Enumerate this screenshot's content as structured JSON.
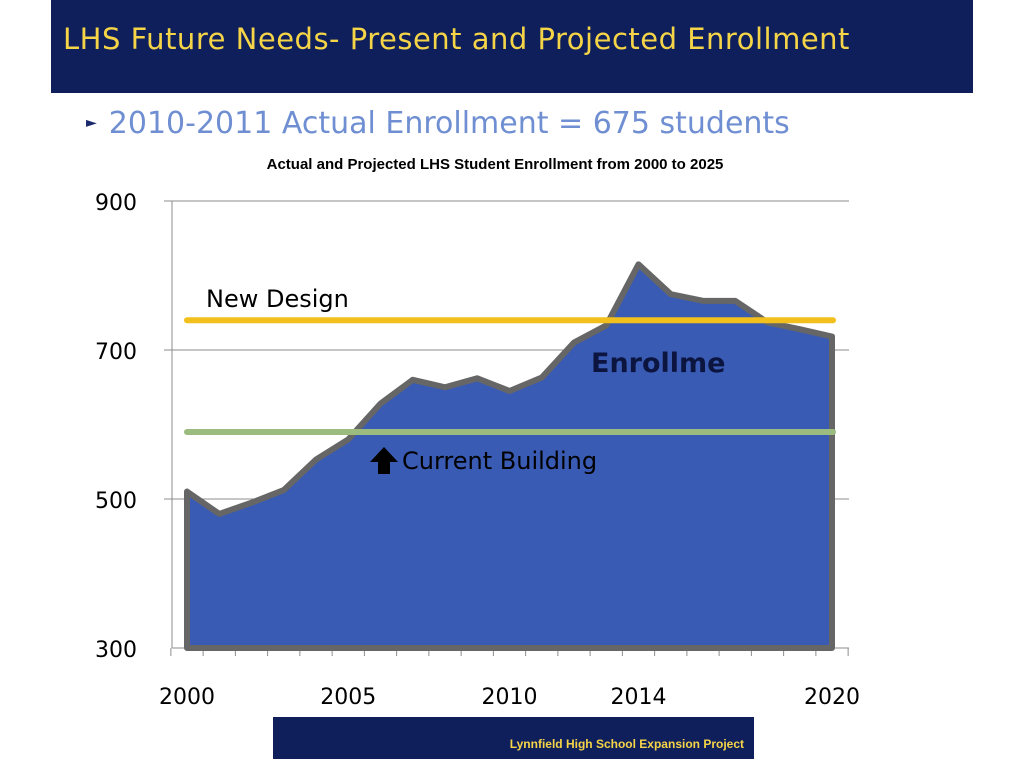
{
  "slide": {
    "title": "LHS Future Needs- Present and Projected Enrollment",
    "bullet": "2010-2011 Actual Enrollment = 675 students",
    "footer": "Lynnfield High School Expansion  Project"
  },
  "colors": {
    "title_bar": "#0f1f5c",
    "title_text": "#f5d547",
    "bullet_text": "#6f8fd2",
    "area_fill": "#3a5bb3",
    "area_outline": "#666666",
    "new_design_line": "#f2c01c",
    "current_building_line": "#9bbb7f"
  },
  "chart_data": {
    "type": "area",
    "title": "Actual and Projected LHS Student Enrollment  from 2000 to 2025",
    "x_tick_labels": [
      "2000",
      "2005",
      "2010",
      "2014",
      "2020"
    ],
    "y_tick_labels": [
      "900",
      "700",
      "500",
      "300"
    ],
    "ylim": [
      300,
      900
    ],
    "xlim": [
      2000,
      2020
    ],
    "grid": true,
    "series": [
      {
        "name": "Enrollme",
        "x": [
          2000,
          2001,
          2002,
          2003,
          2004,
          2005,
          2006,
          2007,
          2008,
          2009,
          2010,
          2011,
          2012,
          2013,
          2014,
          2015,
          2016,
          2017,
          2018,
          2019,
          2020
        ],
        "values": [
          510,
          480,
          495,
          512,
          553,
          580,
          628,
          660,
          650,
          662,
          645,
          663,
          710,
          733,
          815,
          775,
          766,
          766,
          737,
          728,
          718
        ]
      }
    ],
    "reference_lines": [
      {
        "name": "New Design",
        "value": 740
      },
      {
        "name": "Current Building",
        "value": 590
      }
    ],
    "annotations": [
      "New Design",
      "Enrollme",
      "Current Building"
    ]
  }
}
